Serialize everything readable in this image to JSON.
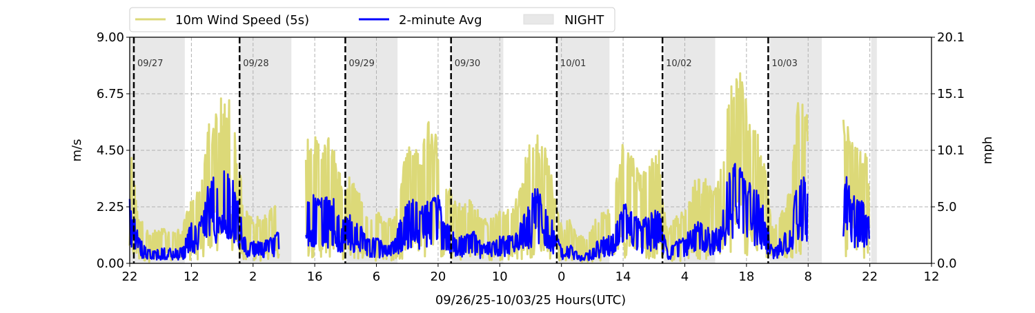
{
  "chart_data": {
    "type": "line",
    "xlabel": "09/26/25-10/03/25  Hours(UTC)",
    "ylabel": "m/s",
    "ylabel_right": "mph",
    "xlim_hours": [
      0,
      182
    ],
    "ylim": [
      0,
      9
    ],
    "x_ticks_hours": [
      0,
      14,
      28,
      42,
      56,
      70,
      84,
      98,
      112,
      126,
      140,
      154,
      168,
      182
    ],
    "x_tick_labels": [
      "22",
      "12",
      "2",
      "16",
      "6",
      "20",
      "10",
      "0",
      "14",
      "4",
      "18",
      "8",
      "22",
      "12"
    ],
    "y_ticks": [
      0,
      2.25,
      4.5,
      6.75,
      9
    ],
    "y_tick_labels": [
      "0.00",
      "2.25",
      "4.50",
      "6.75",
      "9.00"
    ],
    "y_right_tick_labels": [
      "0.0",
      "5.0",
      "10.1",
      "15.1",
      "20.1"
    ],
    "grid": true,
    "legend_position": "top-center",
    "legend": [
      {
        "label": "10m Wind Speed (5s)",
        "color": "#dcd978"
      },
      {
        "label": "2-minute Avg",
        "color": "#0000ff"
      },
      {
        "label": "NIGHT",
        "color": "#e8e8e8"
      }
    ],
    "day_markers": [
      {
        "label": "09/27",
        "hour": 0.94
      },
      {
        "label": "09/28",
        "hour": 24.94
      },
      {
        "label": "09/29",
        "hour": 48.94
      },
      {
        "label": "09/30",
        "hour": 72.94
      },
      {
        "label": "10/01",
        "hour": 96.94
      },
      {
        "label": "10/02",
        "hour": 120.94
      },
      {
        "label": "10/03",
        "hour": 144.94
      }
    ],
    "night_intervals_hours": [
      [
        0,
        12.5
      ],
      [
        24.9,
        36.7
      ],
      [
        49.1,
        60.8
      ],
      [
        73.0,
        84.8
      ],
      [
        97.2,
        108.9
      ],
      [
        121.3,
        132.9
      ],
      [
        145.3,
        157.1
      ],
      [
        168.3,
        169.6
      ]
    ],
    "x_step_hours": 2,
    "series": [
      {
        "name": "10m Wind Speed (5s)",
        "color": "#dcd978",
        "values": [
          4.5,
          1.8,
          1.2,
          1.2,
          1.3,
          1.2,
          1.3,
          2.6,
          2.6,
          5.2,
          5.8,
          6.3,
          5.0,
          2.0,
          1.7,
          1.7,
          2.0,
          2.8,
          null,
          null,
          4.8,
          4.6,
          4.4,
          4.8,
          3.0,
          3.2,
          2.8,
          2.0,
          2.0,
          1.6,
          1.7,
          3.8,
          4.5,
          4.2,
          5.5,
          4.5,
          3.0,
          2.2,
          2.2,
          2.4,
          1.6,
          1.7,
          2.0,
          2.0,
          2.4,
          4.0,
          5.0,
          4.6,
          3.0,
          1.4,
          1.6,
          1.0,
          1.1,
          1.7,
          2.0,
          2.6,
          4.5,
          4.0,
          3.3,
          3.6,
          4.3,
          1.2,
          1.7,
          2.0,
          3.0,
          3.2,
          2.8,
          3.2,
          6.5,
          7.5,
          6.0,
          5.0,
          3.8,
          1.2,
          2.0,
          3.0,
          6.5,
          5.5,
          null,
          null,
          null,
          5.5,
          4.5,
          4.5,
          3.5,
          null,
          null,
          null,
          null,
          null,
          null,
          null
        ]
      },
      {
        "name": "2-minute Avg",
        "color": "#0000ff",
        "values": [
          2.5,
          1.0,
          0.5,
          0.5,
          0.6,
          0.5,
          0.6,
          1.5,
          1.5,
          3.0,
          3.3,
          3.5,
          3.0,
          1.0,
          0.8,
          0.8,
          1.0,
          1.2,
          null,
          null,
          2.5,
          2.5,
          2.4,
          2.5,
          1.5,
          1.8,
          1.5,
          1.0,
          1.0,
          0.7,
          0.8,
          2.0,
          2.5,
          2.2,
          2.3,
          2.5,
          1.5,
          1.0,
          1.0,
          1.2,
          0.7,
          0.8,
          1.0,
          1.0,
          1.2,
          2.0,
          2.8,
          2.5,
          1.5,
          0.6,
          0.7,
          0.3,
          0.4,
          0.8,
          1.0,
          1.3,
          2.2,
          2.0,
          1.5,
          1.8,
          2.2,
          0.5,
          0.8,
          1.0,
          1.5,
          1.5,
          1.3,
          1.5,
          3.5,
          4.0,
          3.0,
          2.8,
          2.0,
          0.5,
          1.0,
          1.5,
          3.5,
          3.2,
          null,
          null,
          null,
          3.5,
          2.5,
          2.5,
          1.8,
          null,
          null,
          null,
          null,
          null,
          null,
          null
        ]
      }
    ]
  }
}
